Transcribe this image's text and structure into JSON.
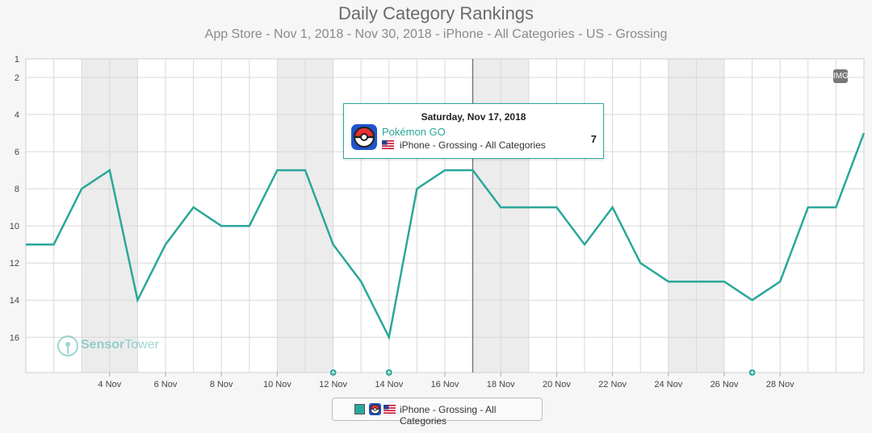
{
  "chart_data": {
    "type": "line",
    "title": "Daily Category Rankings",
    "subtitle": "App Store - Nov 1, 2018 - Nov 30, 2018 - iPhone - All Categories - US - Grossing",
    "x": [
      "2018-11-01",
      "2018-11-02",
      "2018-11-03",
      "2018-11-04",
      "2018-11-05",
      "2018-11-06",
      "2018-11-07",
      "2018-11-08",
      "2018-11-09",
      "2018-11-10",
      "2018-11-11",
      "2018-11-12",
      "2018-11-13",
      "2018-11-14",
      "2018-11-15",
      "2018-11-16",
      "2018-11-17",
      "2018-11-18",
      "2018-11-19",
      "2018-11-20",
      "2018-11-21",
      "2018-11-22",
      "2018-11-23",
      "2018-11-24",
      "2018-11-25",
      "2018-11-26",
      "2018-11-27",
      "2018-11-28",
      "2018-11-29",
      "2018-11-30",
      "2018-12-01"
    ],
    "series": [
      {
        "name": "iPhone - Grossing - All Categories",
        "color": "#2aa79b",
        "values": [
          11,
          11,
          8,
          7,
          14,
          11,
          9,
          10,
          10,
          7,
          7,
          11,
          13,
          16,
          8,
          7,
          7,
          9,
          9,
          9,
          11,
          9,
          12,
          13,
          13,
          13,
          14,
          13,
          9,
          9,
          5
        ]
      }
    ],
    "xtick_labels": [
      "4 Nov",
      "6 Nov",
      "8 Nov",
      "10 Nov",
      "12 Nov",
      "14 Nov",
      "16 Nov",
      "18 Nov",
      "20 Nov",
      "22 Nov",
      "24 Nov",
      "26 Nov",
      "28 Nov"
    ],
    "xtick_dates": [
      "2018-11-04",
      "2018-11-06",
      "2018-11-08",
      "2018-11-10",
      "2018-11-12",
      "2018-11-14",
      "2018-11-16",
      "2018-11-18",
      "2018-11-20",
      "2018-11-22",
      "2018-11-24",
      "2018-11-26",
      "2018-11-28"
    ],
    "yticks": [
      1,
      2,
      4,
      6,
      8,
      10,
      12,
      14,
      16
    ],
    "ylim": [
      1,
      17.9
    ],
    "y_inverted": true,
    "weekend_dates": [
      "2018-11-03",
      "2018-11-04",
      "2018-11-10",
      "2018-11-11",
      "2018-11-17",
      "2018-11-18",
      "2018-11-24",
      "2018-11-25",
      "2018-12-01"
    ],
    "event_markers": [
      "2018-11-12",
      "2018-11-14",
      "2018-11-27"
    ],
    "crosshair_date": "2018-11-17",
    "grid": true
  },
  "tooltip": {
    "date": "Saturday, Nov 17, 2018",
    "app_name": "Pokémon GO",
    "meta": "iPhone - Grossing - All Categories",
    "value": "7"
  },
  "legend": {
    "label": "iPhone - Grossing - All Categories"
  },
  "badge": "IMG",
  "watermark": {
    "part1": "Sensor",
    "part2": "Tower"
  }
}
